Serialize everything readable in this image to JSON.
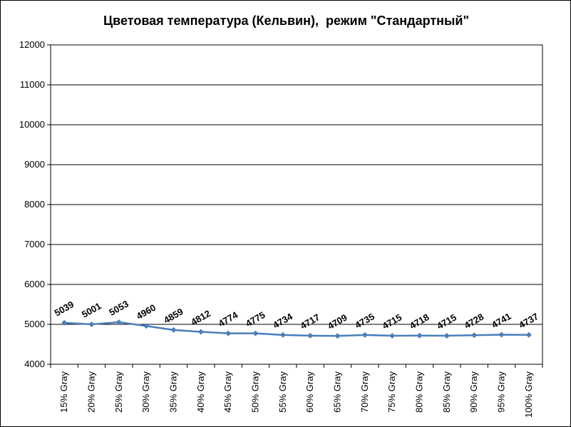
{
  "chart_data": {
    "type": "line",
    "title": "Цветовая температура (Кельвин),  режим \"Стандартный\"",
    "xlabel": "",
    "ylabel": "",
    "ylim": [
      4000,
      12000
    ],
    "yticks": [
      4000,
      5000,
      6000,
      7000,
      8000,
      9000,
      10000,
      11000,
      12000
    ],
    "grid": true,
    "legend": "none",
    "categories": [
      "15% Gray",
      "20% Gray",
      "25% Gray",
      "30% Gray",
      "35% Gray",
      "40% Gray",
      "45% Gray",
      "50% Gray",
      "55% Gray",
      "60% Gray",
      "65% Gray",
      "70% Gray",
      "75% Gray",
      "80% Gray",
      "85% Gray",
      "90% Gray",
      "95% Gray",
      "100% Gray"
    ],
    "series": [
      {
        "name": "",
        "color": "#4a7ebb",
        "values": [
          5039,
          5001,
          5053,
          4960,
          4859,
          4812,
          4774,
          4775,
          4734,
          4717,
          4709,
          4735,
          4715,
          4718,
          4715,
          4728,
          4741,
          4737
        ]
      }
    ]
  }
}
